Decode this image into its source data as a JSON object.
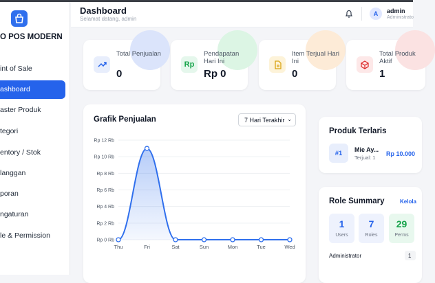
{
  "sidebar": {
    "brand": "O POS MODERN",
    "menu": [
      "int of Sale",
      "ashboard",
      "aster Produk",
      "tegori",
      "entory / Stok",
      "langgan",
      "poran",
      "ngaturan",
      "le & Permission"
    ]
  },
  "header": {
    "title": "Dashboard",
    "subtitle": "Selamat datang, admin",
    "avatar": "A",
    "user": "admin",
    "role": "Administrato"
  },
  "stats": [
    {
      "label": "Total Penjualan",
      "value": "0"
    },
    {
      "icon": "Rp",
      "label": "Pendapatan Hari Ini",
      "value": "Rp 0"
    },
    {
      "label": "Item Terjual Hari Ini",
      "value": "0"
    },
    {
      "label": "Total Produk Aktif",
      "value": "1"
    }
  ],
  "chart_data": {
    "type": "line",
    "title": "Grafik Penjualan",
    "filter": "7 Hari Terakhir",
    "categories": [
      "Thu",
      "Fri",
      "Sat",
      "Sun",
      "Mon",
      "Tue",
      "Wed"
    ],
    "values": [
      0,
      11,
      0,
      0,
      0,
      0,
      0
    ],
    "color": "#2f6fed",
    "ylim": [
      0,
      12
    ],
    "yticks": [
      {
        "value": 0,
        "label": "Rp 0 Rb"
      },
      {
        "value": 2,
        "label": "Rp 2 Rb"
      },
      {
        "value": 4,
        "label": "Rp 4 Rb"
      },
      {
        "value": 6,
        "label": "Rp 6 Rb"
      },
      {
        "value": 8,
        "label": "Rp 8 Rb"
      },
      {
        "value": 10,
        "label": "Rp 10 Rb"
      },
      {
        "value": 12,
        "label": "Rp 12 Rb"
      }
    ],
    "grid": true
  },
  "top_products": {
    "title": "Produk Terlaris",
    "items": [
      {
        "rank": "#1",
        "name": "Mie Ay...",
        "sold": "Terjual: 1",
        "price": "Rp 10.000"
      }
    ]
  },
  "roles": {
    "title": "Role Summary",
    "action": "Kelola",
    "stats": [
      {
        "value": "1",
        "label": "Users"
      },
      {
        "value": "7",
        "label": "Roles"
      },
      {
        "value": "29",
        "label": "Perms"
      }
    ],
    "rows": [
      {
        "name": "Administrator",
        "count": "1"
      }
    ]
  }
}
